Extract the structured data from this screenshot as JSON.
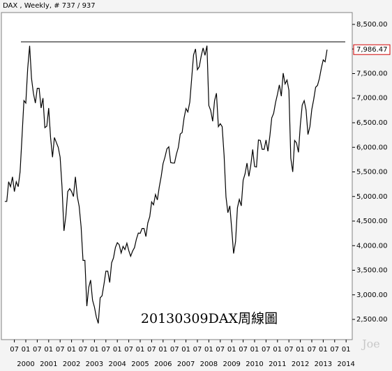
{
  "chart_data": {
    "type": "line",
    "title": "DAX , Weekly, # 737 / 937",
    "annotation": "20130309DAX周線圖",
    "watermark": "Joe",
    "x": [
      "1999-02",
      "1999-03",
      "1999-04",
      "1999-05",
      "1999-06",
      "1999-07",
      "1999-08",
      "1999-09",
      "1999-10",
      "1999-11",
      "1999-12",
      "2000-01",
      "2000-02",
      "2000-03",
      "2000-04",
      "2000-05",
      "2000-06",
      "2000-07",
      "2000-08",
      "2000-09",
      "2000-10",
      "2000-11",
      "2000-12",
      "2001-01",
      "2001-02",
      "2001-03",
      "2001-04",
      "2001-05",
      "2001-06",
      "2001-07",
      "2001-08",
      "2001-09",
      "2001-10",
      "2001-11",
      "2001-12",
      "2002-01",
      "2002-02",
      "2002-03",
      "2002-04",
      "2002-05",
      "2002-06",
      "2002-07",
      "2002-08",
      "2002-09",
      "2002-10",
      "2002-11",
      "2002-12",
      "2003-01",
      "2003-02",
      "2003-03",
      "2003-04",
      "2003-05",
      "2003-06",
      "2003-07",
      "2003-08",
      "2003-09",
      "2003-10",
      "2003-11",
      "2003-12",
      "2004-01",
      "2004-02",
      "2004-03",
      "2004-04",
      "2004-05",
      "2004-06",
      "2004-07",
      "2004-08",
      "2004-09",
      "2004-10",
      "2004-11",
      "2004-12",
      "2005-01",
      "2005-02",
      "2005-03",
      "2005-04",
      "2005-05",
      "2005-06",
      "2005-07",
      "2005-08",
      "2005-09",
      "2005-10",
      "2005-11",
      "2005-12",
      "2006-01",
      "2006-02",
      "2006-03",
      "2006-04",
      "2006-05",
      "2006-06",
      "2006-07",
      "2006-08",
      "2006-09",
      "2006-10",
      "2006-11",
      "2006-12",
      "2007-01",
      "2007-02",
      "2007-03",
      "2007-04",
      "2007-05",
      "2007-06",
      "2007-07",
      "2007-08",
      "2007-09",
      "2007-10",
      "2007-11",
      "2007-12",
      "2008-01",
      "2008-02",
      "2008-03",
      "2008-04",
      "2008-05",
      "2008-06",
      "2008-07",
      "2008-08",
      "2008-09",
      "2008-10",
      "2008-11",
      "2008-12",
      "2009-01",
      "2009-02",
      "2009-03",
      "2009-04",
      "2009-05",
      "2009-06",
      "2009-07",
      "2009-08",
      "2009-09",
      "2009-10",
      "2009-11",
      "2009-12",
      "2010-01",
      "2010-02",
      "2010-03",
      "2010-04",
      "2010-05",
      "2010-06",
      "2010-07",
      "2010-08",
      "2010-09",
      "2010-10",
      "2010-11",
      "2010-12",
      "2011-01",
      "2011-02",
      "2011-03",
      "2011-04",
      "2011-05",
      "2011-06",
      "2011-07",
      "2011-08",
      "2011-09",
      "2011-10",
      "2011-11",
      "2011-12",
      "2012-01",
      "2012-02",
      "2012-03",
      "2012-04",
      "2012-05",
      "2012-06",
      "2012-07",
      "2012-08",
      "2012-09",
      "2012-10",
      "2012-11",
      "2012-12",
      "2013-01",
      "2013-02",
      "2013-03"
    ],
    "series": [
      {
        "name": "DAX",
        "color": "#000000",
        "values": [
          4900,
          4900,
          5300,
          5200,
          5400,
          5100,
          5300,
          5200,
          5500,
          6200,
          6950,
          6900,
          7600,
          8065,
          7400,
          7100,
          6900,
          7200,
          7200,
          6800,
          7000,
          6400,
          6430,
          6800,
          6200,
          5800,
          6200,
          6100,
          6000,
          5800,
          5200,
          4300,
          4600,
          5100,
          5160,
          5100,
          5000,
          5400,
          5000,
          4800,
          4380,
          3700,
          3700,
          2770,
          3150,
          3300,
          2890,
          2750,
          2550,
          2420,
          2940,
          2980,
          3220,
          3480,
          3480,
          3250,
          3650,
          3750,
          3965,
          4060,
          4020,
          3850,
          3985,
          3920,
          4050,
          3900,
          3785,
          3890,
          3960,
          4130,
          4256,
          4250,
          4350,
          4350,
          4185,
          4460,
          4590,
          4890,
          4830,
          5040,
          4930,
          5190,
          5408,
          5670,
          5800,
          5970,
          6010,
          5690,
          5680,
          5680,
          5860,
          6000,
          6270,
          6300,
          6597,
          6790,
          6720,
          6920,
          7400,
          7880,
          8000,
          7580,
          7640,
          7860,
          8020,
          7870,
          8067,
          6850,
          6750,
          6530,
          6950,
          7100,
          6420,
          6480,
          6420,
          5830,
          4990,
          4670,
          4810,
          4340,
          3840,
          4080,
          4770,
          4940,
          4810,
          5330,
          5460,
          5680,
          5410,
          5630,
          5957,
          5610,
          5600,
          6150,
          6140,
          5960,
          5960,
          6150,
          5920,
          6230,
          6600,
          6690,
          6914,
          7080,
          7270,
          7040,
          7510,
          7290,
          7370,
          7160,
          5780,
          5500,
          6140,
          6090,
          5898,
          6460,
          6860,
          6950,
          6760,
          6260,
          6420,
          6770,
          6970,
          7220,
          7260,
          7400,
          7612,
          7780,
          7740,
          7986.47
        ]
      }
    ],
    "current_price": {
      "value": 7986.47,
      "label": "7,986.47"
    },
    "current_color": "#d00000",
    "reference_line": 8145,
    "ylim": [
      2089,
      8741
    ],
    "yticks": [
      {
        "value": 2500,
        "label": "2,500.00"
      },
      {
        "value": 3000,
        "label": "3,000.00"
      },
      {
        "value": 3500,
        "label": "3,500.00"
      },
      {
        "value": 4000,
        "label": "4,000.00"
      },
      {
        "value": 4500,
        "label": "4,500.00"
      },
      {
        "value": 5000,
        "label": "5,000.00"
      },
      {
        "value": 5500,
        "label": "5,500.00"
      },
      {
        "value": 6000,
        "label": "6,000.00"
      },
      {
        "value": 6500,
        "label": "6,500.00"
      },
      {
        "value": 7000,
        "label": "7,000.00"
      },
      {
        "value": 7500,
        "label": "7,500.00"
      },
      {
        "value": 8000,
        "label": "8,000.00"
      },
      {
        "value": 8500,
        "label": "8,500.00"
      }
    ],
    "xticks": [
      {
        "value": "1999-07",
        "label": "07"
      },
      {
        "value": "2000-01",
        "label": "01"
      },
      {
        "value": "2000-07",
        "label": "07"
      },
      {
        "value": "2001-01",
        "label": "01"
      },
      {
        "value": "2001-07",
        "label": "07"
      },
      {
        "value": "2002-01",
        "label": "01"
      },
      {
        "value": "2002-07",
        "label": "07"
      },
      {
        "value": "2003-01",
        "label": "01"
      },
      {
        "value": "2003-07",
        "label": "07"
      },
      {
        "value": "2004-01",
        "label": "01"
      },
      {
        "value": "2004-07",
        "label": "07"
      },
      {
        "value": "2005-01",
        "label": "01"
      },
      {
        "value": "2005-07",
        "label": "07"
      },
      {
        "value": "2006-01",
        "label": "01"
      },
      {
        "value": "2006-07",
        "label": "07"
      },
      {
        "value": "2007-01",
        "label": "01"
      },
      {
        "value": "2007-07",
        "label": "07"
      },
      {
        "value": "2008-01",
        "label": "01"
      },
      {
        "value": "2008-07",
        "label": "07"
      },
      {
        "value": "2009-01",
        "label": "01"
      },
      {
        "value": "2009-07",
        "label": "07"
      },
      {
        "value": "2010-01",
        "label": "01"
      },
      {
        "value": "2010-07",
        "label": "07"
      },
      {
        "value": "2011-01",
        "label": "01"
      },
      {
        "value": "2011-07",
        "label": "07"
      },
      {
        "value": "2012-01",
        "label": "01"
      },
      {
        "value": "2012-07",
        "label": "07"
      },
      {
        "value": "2013-01",
        "label": "01"
      },
      {
        "value": "2013-07",
        "label": "07"
      },
      {
        "value": "2014-01",
        "label": "01"
      }
    ],
    "year_labels": [
      {
        "value": "2000-01",
        "label": "2000"
      },
      {
        "value": "2001-01",
        "label": "2001"
      },
      {
        "value": "2002-01",
        "label": "2002"
      },
      {
        "value": "2003-01",
        "label": "2003"
      },
      {
        "value": "2004-01",
        "label": "2004"
      },
      {
        "value": "2005-01",
        "label": "2005"
      },
      {
        "value": "2006-01",
        "label": "2006"
      },
      {
        "value": "2007-01",
        "label": "2007"
      },
      {
        "value": "2008-01",
        "label": "2008"
      },
      {
        "value": "2009-01",
        "label": "2009"
      },
      {
        "value": "2010-01",
        "label": "2010"
      },
      {
        "value": "2011-01",
        "label": "2011"
      },
      {
        "value": "2012-01",
        "label": "2012"
      },
      {
        "value": "2013-01",
        "label": "2013"
      },
      {
        "value": "2014-01",
        "label": "2014"
      }
    ]
  }
}
